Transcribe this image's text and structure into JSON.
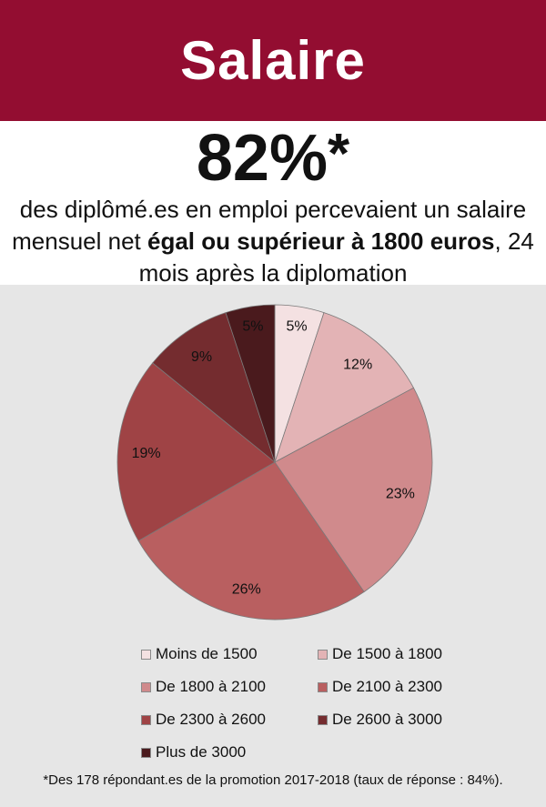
{
  "header": {
    "title": "Salaire"
  },
  "headline": {
    "stat_value": "82%",
    "stat_marker": "*",
    "text_part1": "des diplômé.es en emploi percevaient un salaire mensuel net ",
    "text_bold1": "égal ou supérieur à 1800 euros",
    "text_part2": ", 24 mois après la diplomation"
  },
  "footnote": "*Des 178 répondant.es de la promotion 2017-2018 (taux de réponse : 84%).",
  "chart_data": {
    "type": "pie",
    "categories": [
      "Moins de 1500",
      "De 1500 à 1800",
      "De 1800 à 2100",
      "De 2100 à 2300",
      "De 2300 à 2600",
      "De 2600 à 3000",
      "Plus de 3000"
    ],
    "values": [
      5,
      12,
      23,
      26,
      19,
      9,
      5
    ],
    "value_labels": [
      "5%",
      "12%",
      "23%",
      "26%",
      "19%",
      "9%",
      "5%"
    ],
    "colors": [
      "#f4e1e2",
      "#e3b3b5",
      "#d08a8c",
      "#b95f60",
      "#9f4345",
      "#742c2f",
      "#4a1a1d"
    ],
    "start": "top",
    "direction": "clockwise",
    "legend_position": "bottom"
  }
}
